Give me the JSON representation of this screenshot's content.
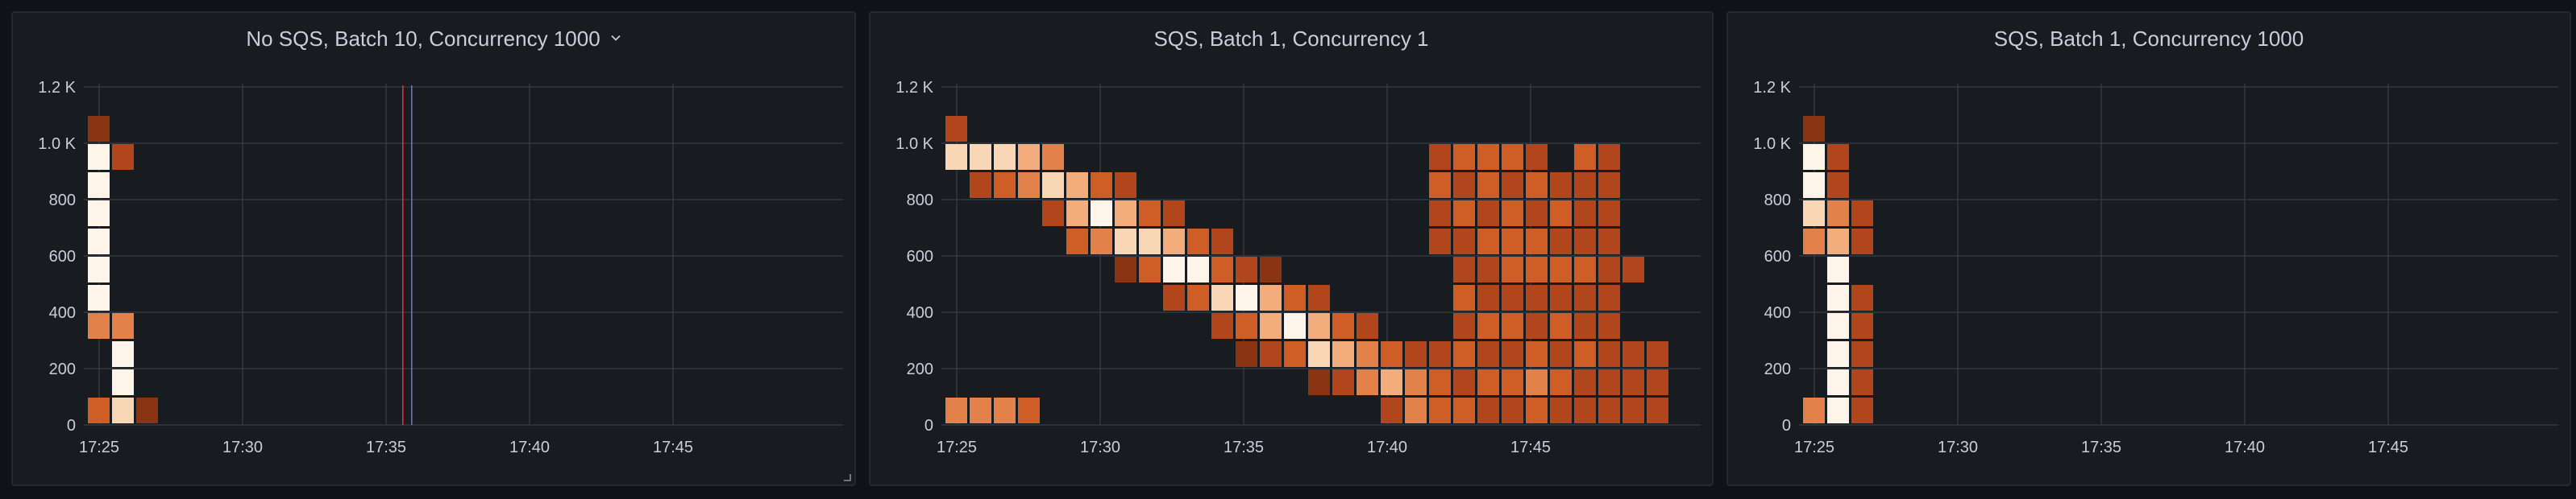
{
  "colors": {
    "background": "#111217",
    "panel": "#181b1f",
    "grid": "#34373d",
    "axis_text": "#ccccdc",
    "annotation_line": "#e02f44",
    "heat_scale": [
      "#6b2311",
      "#8a3414",
      "#b1451b",
      "#cf5e26",
      "#e3814a",
      "#f3ad7d",
      "#f8d6b6",
      "#fff4ea"
    ]
  },
  "panels": [
    {
      "title": "No SQS, Batch 10, Concurrency 1000",
      "has_menu": true,
      "resizable": true
    },
    {
      "title": "SQS, Batch 1, Concurrency 1",
      "has_menu": false,
      "resizable": false
    },
    {
      "title": "SQS, Batch 1, Concurrency 1000",
      "has_menu": false,
      "resizable": false
    }
  ],
  "chart_data": [
    {
      "type": "heatmap",
      "title": "No SQS, Batch 10, Concurrency 1000",
      "x_ticks": [
        "17:25",
        "17:30",
        "17:35",
        "17:40",
        "17:45"
      ],
      "y_ticks": [
        "0",
        "200",
        "400",
        "600",
        "800",
        "1.0 K",
        "1.2 K"
      ],
      "xlim": [
        0,
        26
      ],
      "ylim": [
        0,
        1200
      ],
      "bucket_size": 100,
      "grid": true,
      "annotations": [
        {
          "x": 10.8,
          "label": ""
        },
        {
          "x": 11.0,
          "label": ""
        }
      ],
      "cells": [
        {
          "x": 0,
          "y": 1050,
          "i": 1
        },
        {
          "x": 0,
          "y": 950,
          "i": 7
        },
        {
          "x": 0,
          "y": 850,
          "i": 7
        },
        {
          "x": 0,
          "y": 750,
          "i": 7
        },
        {
          "x": 0,
          "y": 650,
          "i": 7
        },
        {
          "x": 0,
          "y": 550,
          "i": 7
        },
        {
          "x": 0,
          "y": 450,
          "i": 7
        },
        {
          "x": 0,
          "y": 350,
          "i": 4
        },
        {
          "x": 0,
          "y": 50,
          "i": 3
        },
        {
          "x": 1,
          "y": 950,
          "i": 2
        },
        {
          "x": 1,
          "y": 350,
          "i": 4
        },
        {
          "x": 1,
          "y": 250,
          "i": 7
        },
        {
          "x": 1,
          "y": 150,
          "i": 7
        },
        {
          "x": 1,
          "y": 50,
          "i": 6
        },
        {
          "x": 2,
          "y": 50,
          "i": 1
        }
      ]
    },
    {
      "type": "heatmap",
      "title": "SQS, Batch 1, Concurrency 1",
      "x_ticks": [
        "17:25",
        "17:30",
        "17:35",
        "17:40",
        "17:45"
      ],
      "y_ticks": [
        "0",
        "200",
        "400",
        "600",
        "800",
        "1.0 K",
        "1.2 K"
      ],
      "xlim": [
        0,
        26
      ],
      "ylim": [
        0,
        1200
      ],
      "bucket_size": 100,
      "grid": true,
      "cells": [
        {
          "x": 0,
          "y": 1050,
          "i": 2
        },
        {
          "x": 0,
          "y": 950,
          "i": 6
        },
        {
          "x": 0,
          "y": 50,
          "i": 4
        },
        {
          "x": 1,
          "y": 950,
          "i": 6
        },
        {
          "x": 1,
          "y": 850,
          "i": 2
        },
        {
          "x": 1,
          "y": 50,
          "i": 4
        },
        {
          "x": 2,
          "y": 950,
          "i": 6
        },
        {
          "x": 2,
          "y": 850,
          "i": 3
        },
        {
          "x": 2,
          "y": 50,
          "i": 4
        },
        {
          "x": 3,
          "y": 950,
          "i": 5
        },
        {
          "x": 3,
          "y": 850,
          "i": 4
        },
        {
          "x": 3,
          "y": 50,
          "i": 3
        },
        {
          "x": 4,
          "y": 950,
          "i": 4
        },
        {
          "x": 4,
          "y": 850,
          "i": 6
        },
        {
          "x": 4,
          "y": 750,
          "i": 2
        },
        {
          "x": 5,
          "y": 850,
          "i": 5
        },
        {
          "x": 5,
          "y": 750,
          "i": 5
        },
        {
          "x": 5,
          "y": 650,
          "i": 3
        },
        {
          "x": 6,
          "y": 850,
          "i": 3
        },
        {
          "x": 6,
          "y": 750,
          "i": 7
        },
        {
          "x": 6,
          "y": 650,
          "i": 4
        },
        {
          "x": 7,
          "y": 850,
          "i": 2
        },
        {
          "x": 7,
          "y": 750,
          "i": 5
        },
        {
          "x": 7,
          "y": 650,
          "i": 6
        },
        {
          "x": 7,
          "y": 550,
          "i": 1
        },
        {
          "x": 8,
          "y": 750,
          "i": 3
        },
        {
          "x": 8,
          "y": 650,
          "i": 6
        },
        {
          "x": 8,
          "y": 550,
          "i": 3
        },
        {
          "x": 9,
          "y": 750,
          "i": 2
        },
        {
          "x": 9,
          "y": 650,
          "i": 5
        },
        {
          "x": 9,
          "y": 550,
          "i": 7
        },
        {
          "x": 9,
          "y": 450,
          "i": 2
        },
        {
          "x": 10,
          "y": 650,
          "i": 3
        },
        {
          "x": 10,
          "y": 550,
          "i": 7
        },
        {
          "x": 10,
          "y": 450,
          "i": 3
        },
        {
          "x": 11,
          "y": 650,
          "i": 2
        },
        {
          "x": 11,
          "y": 550,
          "i": 3
        },
        {
          "x": 11,
          "y": 450,
          "i": 6
        },
        {
          "x": 11,
          "y": 350,
          "i": 2
        },
        {
          "x": 12,
          "y": 550,
          "i": 2
        },
        {
          "x": 12,
          "y": 450,
          "i": 7
        },
        {
          "x": 12,
          "y": 350,
          "i": 3
        },
        {
          "x": 12,
          "y": 250,
          "i": 1
        },
        {
          "x": 13,
          "y": 550,
          "i": 1
        },
        {
          "x": 13,
          "y": 450,
          "i": 5
        },
        {
          "x": 13,
          "y": 350,
          "i": 5
        },
        {
          "x": 13,
          "y": 250,
          "i": 2
        },
        {
          "x": 14,
          "y": 450,
          "i": 3
        },
        {
          "x": 14,
          "y": 350,
          "i": 7
        },
        {
          "x": 14,
          "y": 250,
          "i": 3
        },
        {
          "x": 15,
          "y": 450,
          "i": 2
        },
        {
          "x": 15,
          "y": 350,
          "i": 5
        },
        {
          "x": 15,
          "y": 250,
          "i": 6
        },
        {
          "x": 15,
          "y": 150,
          "i": 1
        },
        {
          "x": 16,
          "y": 350,
          "i": 3
        },
        {
          "x": 16,
          "y": 250,
          "i": 5
        },
        {
          "x": 16,
          "y": 150,
          "i": 2
        },
        {
          "x": 17,
          "y": 350,
          "i": 2
        },
        {
          "x": 17,
          "y": 250,
          "i": 4
        },
        {
          "x": 17,
          "y": 150,
          "i": 4
        },
        {
          "x": 18,
          "y": 250,
          "i": 3
        },
        {
          "x": 18,
          "y": 150,
          "i": 5
        },
        {
          "x": 18,
          "y": 50,
          "i": 2
        },
        {
          "x": 19,
          "y": 250,
          "i": 2
        },
        {
          "x": 19,
          "y": 150,
          "i": 4
        },
        {
          "x": 19,
          "y": 50,
          "i": 4
        },
        {
          "x": 20,
          "y": 950,
          "i": 2
        },
        {
          "x": 20,
          "y": 850,
          "i": 3
        },
        {
          "x": 20,
          "y": 750,
          "i": 2
        },
        {
          "x": 20,
          "y": 650,
          "i": 2
        },
        {
          "x": 20,
          "y": 250,
          "i": 2
        },
        {
          "x": 20,
          "y": 150,
          "i": 3
        },
        {
          "x": 20,
          "y": 50,
          "i": 3
        },
        {
          "x": 21,
          "y": 950,
          "i": 3
        },
        {
          "x": 21,
          "y": 850,
          "i": 2
        },
        {
          "x": 21,
          "y": 750,
          "i": 3
        },
        {
          "x": 21,
          "y": 650,
          "i": 2
        },
        {
          "x": 21,
          "y": 550,
          "i": 2
        },
        {
          "x": 21,
          "y": 450,
          "i": 3
        },
        {
          "x": 21,
          "y": 350,
          "i": 2
        },
        {
          "x": 21,
          "y": 250,
          "i": 3
        },
        {
          "x": 21,
          "y": 150,
          "i": 2
        },
        {
          "x": 21,
          "y": 50,
          "i": 3
        },
        {
          "x": 22,
          "y": 950,
          "i": 3
        },
        {
          "x": 22,
          "y": 850,
          "i": 3
        },
        {
          "x": 22,
          "y": 750,
          "i": 2
        },
        {
          "x": 22,
          "y": 650,
          "i": 3
        },
        {
          "x": 22,
          "y": 550,
          "i": 2
        },
        {
          "x": 22,
          "y": 450,
          "i": 2
        },
        {
          "x": 22,
          "y": 350,
          "i": 3
        },
        {
          "x": 22,
          "y": 250,
          "i": 2
        },
        {
          "x": 22,
          "y": 150,
          "i": 3
        },
        {
          "x": 22,
          "y": 50,
          "i": 2
        },
        {
          "x": 23,
          "y": 950,
          "i": 3
        },
        {
          "x": 23,
          "y": 850,
          "i": 2
        },
        {
          "x": 23,
          "y": 750,
          "i": 3
        },
        {
          "x": 23,
          "y": 650,
          "i": 3
        },
        {
          "x": 23,
          "y": 550,
          "i": 3
        },
        {
          "x": 23,
          "y": 450,
          "i": 2
        },
        {
          "x": 23,
          "y": 350,
          "i": 3
        },
        {
          "x": 23,
          "y": 250,
          "i": 2
        },
        {
          "x": 23,
          "y": 150,
          "i": 3
        },
        {
          "x": 23,
          "y": 50,
          "i": 2
        },
        {
          "x": 24,
          "y": 950,
          "i": 2
        },
        {
          "x": 24,
          "y": 850,
          "i": 3
        },
        {
          "x": 24,
          "y": 750,
          "i": 2
        },
        {
          "x": 24,
          "y": 650,
          "i": 3
        },
        {
          "x": 24,
          "y": 550,
          "i": 3
        },
        {
          "x": 24,
          "y": 450,
          "i": 2
        },
        {
          "x": 24,
          "y": 350,
          "i": 2
        },
        {
          "x": 24,
          "y": 250,
          "i": 3
        },
        {
          "x": 24,
          "y": 150,
          "i": 4
        },
        {
          "x": 24,
          "y": 50,
          "i": 3
        },
        {
          "x": 25,
          "y": 850,
          "i": 2
        },
        {
          "x": 25,
          "y": 750,
          "i": 3
        },
        {
          "x": 25,
          "y": 650,
          "i": 2
        },
        {
          "x": 25,
          "y": 550,
          "i": 3
        },
        {
          "x": 25,
          "y": 450,
          "i": 2
        },
        {
          "x": 25,
          "y": 350,
          "i": 3
        },
        {
          "x": 25,
          "y": 250,
          "i": 2
        },
        {
          "x": 25,
          "y": 150,
          "i": 3
        },
        {
          "x": 25,
          "y": 50,
          "i": 2
        },
        {
          "x": 26,
          "y": 950,
          "i": 3
        },
        {
          "x": 26,
          "y": 850,
          "i": 2
        },
        {
          "x": 26,
          "y": 750,
          "i": 2
        },
        {
          "x": 26,
          "y": 650,
          "i": 2
        },
        {
          "x": 26,
          "y": 550,
          "i": 3
        },
        {
          "x": 26,
          "y": 450,
          "i": 2
        },
        {
          "x": 26,
          "y": 350,
          "i": 2
        },
        {
          "x": 26,
          "y": 250,
          "i": 3
        },
        {
          "x": 26,
          "y": 150,
          "i": 2
        },
        {
          "x": 26,
          "y": 50,
          "i": 2
        },
        {
          "x": 27,
          "y": 950,
          "i": 2
        },
        {
          "x": 27,
          "y": 850,
          "i": 2
        },
        {
          "x": 27,
          "y": 750,
          "i": 2
        },
        {
          "x": 27,
          "y": 650,
          "i": 2
        },
        {
          "x": 27,
          "y": 550,
          "i": 2
        },
        {
          "x": 27,
          "y": 450,
          "i": 2
        },
        {
          "x": 27,
          "y": 350,
          "i": 2
        },
        {
          "x": 27,
          "y": 250,
          "i": 2
        },
        {
          "x": 27,
          "y": 150,
          "i": 2
        },
        {
          "x": 27,
          "y": 50,
          "i": 2
        },
        {
          "x": 28,
          "y": 550,
          "i": 2
        },
        {
          "x": 28,
          "y": 250,
          "i": 2
        },
        {
          "x": 28,
          "y": 150,
          "i": 2
        },
        {
          "x": 28,
          "y": 50,
          "i": 2
        },
        {
          "x": 29,
          "y": 250,
          "i": 2
        },
        {
          "x": 29,
          "y": 150,
          "i": 2
        },
        {
          "x": 29,
          "y": 50,
          "i": 2
        }
      ]
    },
    {
      "type": "heatmap",
      "title": "SQS, Batch 1, Concurrency 1000",
      "x_ticks": [
        "17:25",
        "17:30",
        "17:35",
        "17:40",
        "17:45"
      ],
      "y_ticks": [
        "0",
        "200",
        "400",
        "600",
        "800",
        "1.0 K",
        "1.2 K"
      ],
      "xlim": [
        0,
        26
      ],
      "ylim": [
        0,
        1200
      ],
      "bucket_size": 100,
      "grid": true,
      "cells": [
        {
          "x": 0,
          "y": 1050,
          "i": 1
        },
        {
          "x": 0,
          "y": 950,
          "i": 7
        },
        {
          "x": 0,
          "y": 850,
          "i": 7
        },
        {
          "x": 0,
          "y": 750,
          "i": 6
        },
        {
          "x": 0,
          "y": 650,
          "i": 4
        },
        {
          "x": 0,
          "y": 50,
          "i": 4
        },
        {
          "x": 1,
          "y": 950,
          "i": 2
        },
        {
          "x": 1,
          "y": 850,
          "i": 2
        },
        {
          "x": 1,
          "y": 750,
          "i": 4
        },
        {
          "x": 1,
          "y": 650,
          "i": 5
        },
        {
          "x": 1,
          "y": 550,
          "i": 7
        },
        {
          "x": 1,
          "y": 450,
          "i": 7
        },
        {
          "x": 1,
          "y": 350,
          "i": 7
        },
        {
          "x": 1,
          "y": 250,
          "i": 7
        },
        {
          "x": 1,
          "y": 150,
          "i": 7
        },
        {
          "x": 1,
          "y": 50,
          "i": 7
        },
        {
          "x": 2,
          "y": 750,
          "i": 2
        },
        {
          "x": 2,
          "y": 650,
          "i": 2
        },
        {
          "x": 2,
          "y": 450,
          "i": 2
        },
        {
          "x": 2,
          "y": 350,
          "i": 2
        },
        {
          "x": 2,
          "y": 250,
          "i": 2
        },
        {
          "x": 2,
          "y": 150,
          "i": 2
        },
        {
          "x": 2,
          "y": 50,
          "i": 2
        }
      ]
    }
  ]
}
